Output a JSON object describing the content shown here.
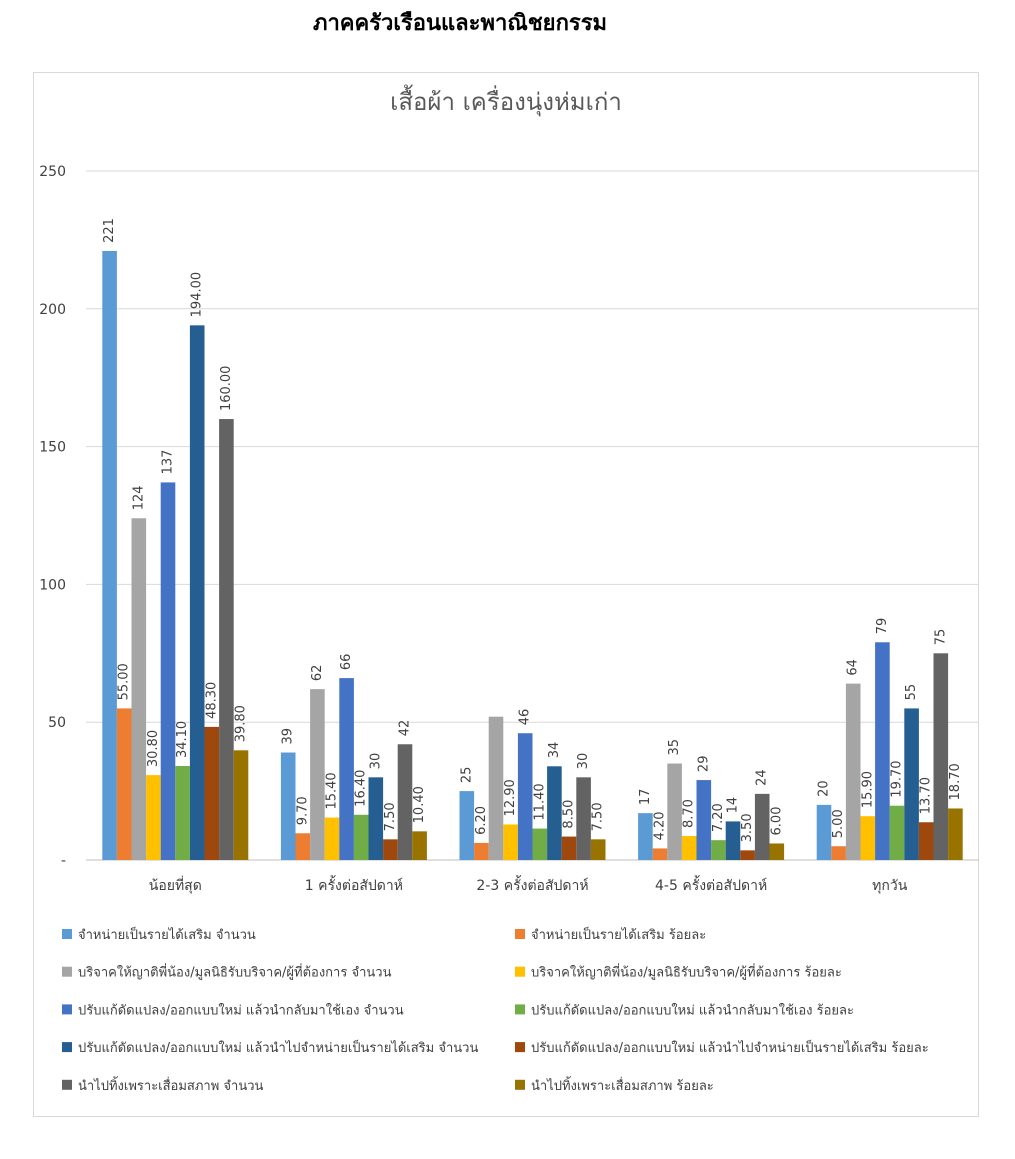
{
  "header": {
    "title": "ภาคครัวเรือนและพาณิชยกรรม"
  },
  "chart_data": {
    "type": "bar",
    "title": "เสื้อผ้า เครื่องนุ่งห่มเก่า",
    "categories": [
      "น้อยที่สุด",
      "1 ครั้งต่อสัปดาห์",
      "2-3 ครั้งต่อสัปดาห์",
      "4-5 ครั้งต่อสัปดาห์",
      "ทุกวัน"
    ],
    "ylim": [
      0,
      250
    ],
    "yticks": [
      {
        "value": 0,
        "label": "-"
      },
      50,
      100,
      150,
      200,
      250
    ],
    "grid": true,
    "legend": "bottom",
    "series": [
      {
        "name": "จำหน่ายเป็นรายได้เสริม  จำนวน",
        "color": "#5b9bd5",
        "values": [
          221,
          39,
          25,
          17,
          20
        ]
      },
      {
        "name": "จำหน่ายเป็นรายได้เสริม  ร้อยละ",
        "color": "#ed7d31",
        "values": [
          55,
          9.7,
          6.2,
          4.2,
          5
        ],
        "value_labels": [
          "55.00",
          "9.70",
          "6.20",
          "4.20",
          "5.00"
        ]
      },
      {
        "name": "บริจาคให้ญาติพี่น้อง/มูลนิธิรับบริจาค/ผู้ที่ต้องการ จำนวน",
        "color": "#a5a5a5",
        "values": [
          124,
          62,
          52,
          35,
          64
        ],
        "value_labels": [
          "124",
          "62",
          null,
          "35",
          "64"
        ]
      },
      {
        "name": "บริจาคให้ญาติพี่น้อง/มูลนิธิรับบริจาค/ผู้ที่ต้องการ ร้อยละ",
        "color": "#ffc000",
        "values": [
          30.8,
          15.4,
          12.9,
          8.7,
          15.9
        ],
        "value_labels": [
          "30.80",
          "15.40",
          "12.90",
          "8.70",
          "15.90"
        ]
      },
      {
        "name": "ปรับแก้ดัดแปลง/ออกแบบใหม่ แล้วนำกลับมาใช้เอง จำนวน",
        "color": "#4472c4",
        "values": [
          137,
          66,
          46,
          29,
          79
        ]
      },
      {
        "name": "ปรับแก้ดัดแปลง/ออกแบบใหม่ แล้วนำกลับมาใช้เอง ร้อยละ",
        "color": "#70ad47",
        "values": [
          34.1,
          16.4,
          11.4,
          7.2,
          19.7
        ],
        "value_labels": [
          "34.10",
          "16.40",
          "11.40",
          "7.20",
          "19.70"
        ]
      },
      {
        "name": "ปรับแก้ดัดแปลง/ออกแบบใหม่ แล้วนำไปจำหน่ายเป็นรายได้เสริม จำนวน",
        "color": "#255e91",
        "values": [
          194,
          30,
          34,
          14,
          55
        ],
        "value_labels": [
          "194.00",
          "30",
          "34",
          "14",
          "55"
        ]
      },
      {
        "name": "ปรับแก้ดัดแปลง/ออกแบบใหม่ แล้วนำไปจำหน่ายเป็นรายได้เสริม ร้อยละ",
        "color": "#9e480e",
        "values": [
          48.3,
          7.5,
          8.5,
          3.5,
          13.7
        ],
        "value_labels": [
          "48.30",
          "7.50",
          "8.50",
          "3.50",
          "13.70"
        ]
      },
      {
        "name": "นำไปทิ้งเพราะเสื่อมสภาพ จำนวน",
        "color": "#636363",
        "values": [
          160,
          42,
          30,
          24,
          75
        ],
        "value_labels": [
          "160.00",
          "42",
          "30",
          "24",
          "75"
        ]
      },
      {
        "name": "นำไปทิ้งเพราะเสื่อมสภาพ ร้อยละ",
        "color": "#997300",
        "values": [
          39.8,
          10.4,
          7.5,
          6,
          18.7
        ],
        "value_labels": [
          "39.80",
          "10.40",
          "7.50",
          "6.00",
          "18.70"
        ]
      }
    ]
  }
}
